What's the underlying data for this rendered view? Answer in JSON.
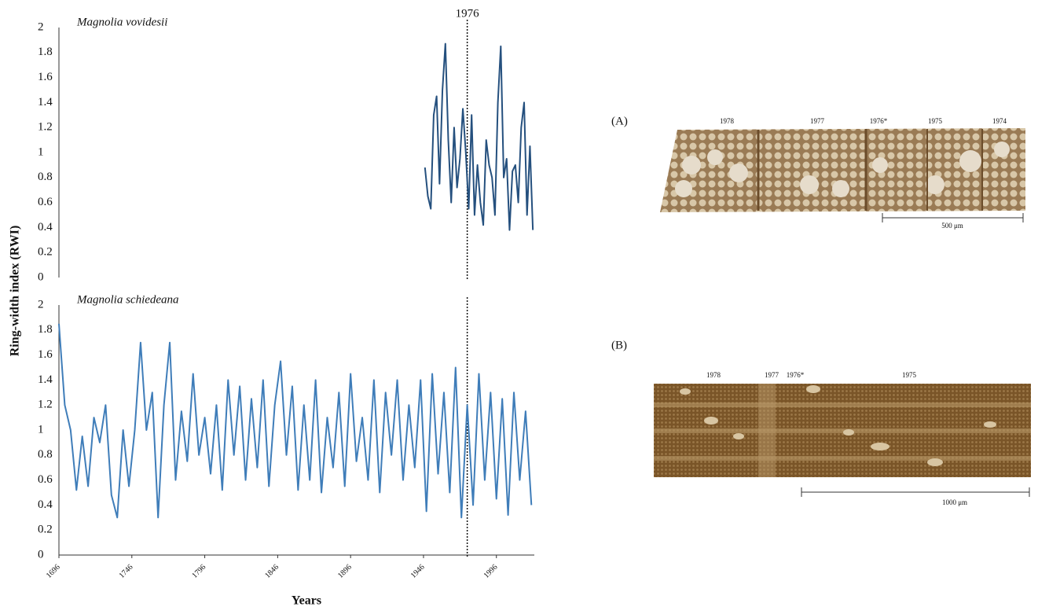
{
  "chart_data": [
    {
      "type": "line",
      "title": "Magnolia vovidesii",
      "ylabel": "Ring-width index (RWI)",
      "x": [
        1947,
        1949,
        1951,
        1953,
        1955,
        1957,
        1959,
        1961,
        1963,
        1965,
        1967,
        1969,
        1971,
        1973,
        1975,
        1977,
        1979,
        1981,
        1983,
        1985,
        1987,
        1989,
        1991,
        1993,
        1995,
        1997,
        1999,
        2001,
        2003,
        2005,
        2007,
        2009,
        2011,
        2013,
        2015,
        2017,
        2019,
        2021
      ],
      "series": [
        {
          "color": "#25507e",
          "values": [
            0.88,
            0.65,
            0.55,
            1.3,
            1.45,
            0.75,
            1.5,
            1.87,
            1.1,
            0.6,
            1.2,
            0.72,
            0.95,
            1.35,
            1.0,
            0.55,
            1.3,
            0.5,
            0.9,
            0.6,
            0.42,
            1.1,
            0.9,
            0.8,
            0.5,
            1.4,
            1.85,
            0.8,
            0.95,
            0.38,
            0.85,
            0.9,
            0.6,
            1.2,
            1.4,
            0.5,
            1.05,
            0.38
          ]
        }
      ],
      "xlim": [
        1696,
        2022
      ],
      "ylim": [
        0,
        2
      ],
      "yticks": [
        0,
        0.2,
        0.4,
        0.6,
        0.8,
        1,
        1.2,
        1.4,
        1.6,
        1.8,
        2
      ],
      "annotation": {
        "x": 1976,
        "label": "1976"
      }
    },
    {
      "type": "line",
      "title": "Magnolia schiedeana",
      "xlabel": "Years",
      "x": [
        1696,
        1700,
        1704,
        1708,
        1712,
        1716,
        1720,
        1724,
        1728,
        1732,
        1736,
        1740,
        1744,
        1748,
        1752,
        1756,
        1760,
        1764,
        1768,
        1772,
        1776,
        1780,
        1784,
        1788,
        1792,
        1796,
        1800,
        1804,
        1808,
        1812,
        1816,
        1820,
        1824,
        1828,
        1832,
        1836,
        1840,
        1844,
        1848,
        1852,
        1856,
        1860,
        1864,
        1868,
        1872,
        1876,
        1880,
        1884,
        1888,
        1892,
        1896,
        1900,
        1904,
        1908,
        1912,
        1916,
        1920,
        1924,
        1928,
        1932,
        1936,
        1940,
        1944,
        1948,
        1952,
        1956,
        1960,
        1964,
        1968,
        1972,
        1976,
        1980,
        1984,
        1988,
        1992,
        1996,
        2000,
        2004,
        2008,
        2012,
        2016,
        2020
      ],
      "series": [
        {
          "color": "#3f7db9",
          "values": [
            1.85,
            1.2,
            1.0,
            0.52,
            0.95,
            0.55,
            1.1,
            0.9,
            1.2,
            0.48,
            0.3,
            1.0,
            0.55,
            1.0,
            1.7,
            1.0,
            1.3,
            0.3,
            1.2,
            1.7,
            0.6,
            1.15,
            0.75,
            1.45,
            0.8,
            1.1,
            0.65,
            1.2,
            0.52,
            1.4,
            0.8,
            1.35,
            0.6,
            1.25,
            0.7,
            1.4,
            0.55,
            1.2,
            1.55,
            0.8,
            1.35,
            0.52,
            1.2,
            0.6,
            1.4,
            0.5,
            1.1,
            0.7,
            1.3,
            0.55,
            1.45,
            0.75,
            1.1,
            0.6,
            1.4,
            0.5,
            1.3,
            0.8,
            1.4,
            0.6,
            1.2,
            0.7,
            1.4,
            0.35,
            1.45,
            0.65,
            1.3,
            0.5,
            1.5,
            0.3,
            1.2,
            0.4,
            1.45,
            0.6,
            1.3,
            0.45,
            1.25,
            0.32,
            1.3,
            0.6,
            1.15,
            0.4
          ]
        }
      ],
      "xlim": [
        1696,
        2022
      ],
      "ylim": [
        0,
        2
      ],
      "yticks": [
        0,
        0.2,
        0.4,
        0.6,
        0.8,
        1,
        1.2,
        1.4,
        1.6,
        1.8,
        2
      ],
      "xticks": [
        1696,
        1746,
        1796,
        1846,
        1896,
        1946,
        1996
      ],
      "annotation": {
        "x": 1976
      }
    }
  ],
  "panels": [
    {
      "label": "(A)",
      "years": [
        "1978",
        "1977",
        "1976*",
        "1975",
        "1974"
      ],
      "scale": "500 μm"
    },
    {
      "label": "(B)",
      "years": [
        "1978",
        "1977",
        "1976*",
        "1975"
      ],
      "scale": "1000 μm"
    }
  ]
}
